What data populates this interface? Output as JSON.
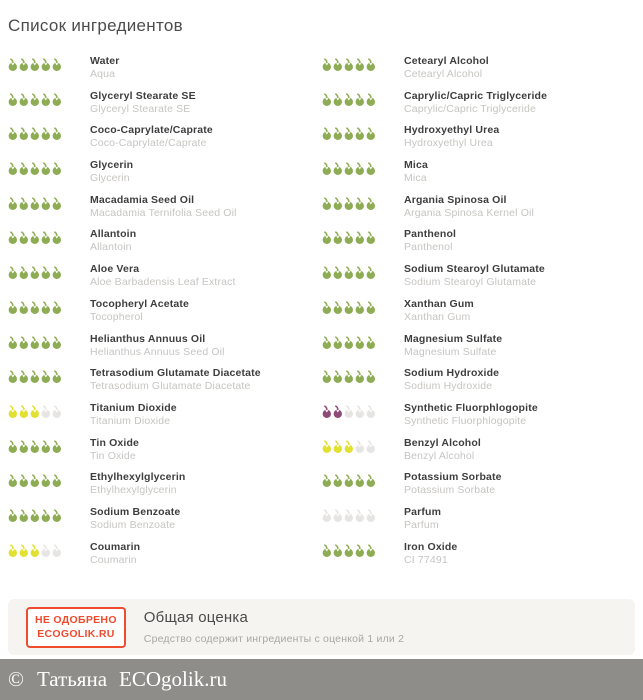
{
  "title": "Список ингредиентов",
  "rating_colors": {
    "green": "#8dac53",
    "yellow": "#e2e030",
    "purple": "#8b4c77",
    "empty": "#e6e5e3"
  },
  "rating_max": 5,
  "columns": {
    "left": [
      {
        "name": "Water",
        "sub": "Aqua",
        "color": "green",
        "filled": 5
      },
      {
        "name": "Glyceryl Stearate SE",
        "sub": "Glyceryl Stearate SE",
        "color": "green",
        "filled": 5
      },
      {
        "name": "Coco-Caprylate/Caprate",
        "sub": "Coco-Caprylate/Caprate",
        "color": "green",
        "filled": 5
      },
      {
        "name": "Glycerin",
        "sub": "Glycerin",
        "color": "green",
        "filled": 5
      },
      {
        "name": "Macadamia Seed Oil",
        "sub": "Macadamia Ternifolia Seed Oil",
        "color": "green",
        "filled": 5
      },
      {
        "name": "Allantoin",
        "sub": "Allantoin",
        "color": "green",
        "filled": 5
      },
      {
        "name": "Aloe Vera",
        "sub": "Aloe Barbadensis Leaf Extract",
        "color": "green",
        "filled": 5
      },
      {
        "name": "Tocopheryl Acetate",
        "sub": "Tocopherol",
        "color": "green",
        "filled": 5
      },
      {
        "name": "Helianthus Annuus Oil",
        "sub": "Helianthus Annuus Seed Oil",
        "color": "green",
        "filled": 5
      },
      {
        "name": "Tetrasodium Glutamate Diacetate",
        "sub": "Tetrasodium Glutamate Diacetate",
        "color": "green",
        "filled": 5
      },
      {
        "name": "Titanium Dioxide",
        "sub": "Titanium Dioxide",
        "color": "yellow",
        "filled": 3
      },
      {
        "name": "Tin Oxide",
        "sub": "Tin Oxide",
        "color": "green",
        "filled": 5
      },
      {
        "name": "Ethylhexylglycerin",
        "sub": "Ethylhexylglycerin",
        "color": "green",
        "filled": 5
      },
      {
        "name": "Sodium Benzoate",
        "sub": "Sodium Benzoate",
        "color": "green",
        "filled": 5
      },
      {
        "name": "Coumarin",
        "sub": "Coumarin",
        "color": "yellow",
        "filled": 3
      }
    ],
    "right": [
      {
        "name": "Cetearyl Alcohol",
        "sub": "Cetearyl Alcohol",
        "color": "green",
        "filled": 5
      },
      {
        "name": "Caprylic/Capric Triglyceride",
        "sub": "Caprylic/Capric Triglyceride",
        "color": "green",
        "filled": 5
      },
      {
        "name": "Hydroxyethyl Urea",
        "sub": "Hydroxyethyl Urea",
        "color": "green",
        "filled": 5
      },
      {
        "name": "Mica",
        "sub": "Mica",
        "color": "green",
        "filled": 5
      },
      {
        "name": "Argania Spinosa Oil",
        "sub": "Argania Spinosa Kernel Oil",
        "color": "green",
        "filled": 5
      },
      {
        "name": "Panthenol",
        "sub": "Panthenol",
        "color": "green",
        "filled": 5
      },
      {
        "name": "Sodium Stearoyl Glutamate",
        "sub": "Sodium Stearoyl Glutamate",
        "color": "green",
        "filled": 5
      },
      {
        "name": "Xanthan Gum",
        "sub": "Xanthan Gum",
        "color": "green",
        "filled": 5
      },
      {
        "name": "Magnesium Sulfate",
        "sub": "Magnesium Sulfate",
        "color": "green",
        "filled": 5
      },
      {
        "name": "Sodium Hydroxide",
        "sub": "Sodium Hydroxide",
        "color": "green",
        "filled": 5
      },
      {
        "name": "Synthetic Fluorphlogopite",
        "sub": "Synthetic Fluorphlogopite",
        "color": "purple",
        "filled": 2
      },
      {
        "name": "Benzyl Alcohol",
        "sub": "Benzyl Alcohol",
        "color": "yellow",
        "filled": 3
      },
      {
        "name": "Potassium Sorbate",
        "sub": "Potassium Sorbate",
        "color": "green",
        "filled": 5
      },
      {
        "name": "Parfum",
        "sub": "Parfum",
        "color": "empty",
        "filled": 0
      },
      {
        "name": "Iron Oxide",
        "sub": "CI 77491",
        "color": "green",
        "filled": 5
      }
    ]
  },
  "summary": {
    "stamp_line1": "НЕ ОДОБРЕНО",
    "stamp_line2": "ECOGOLIK.RU",
    "title": "Общая оценка",
    "text": "Средство содержит ингредиенты с оценкой 1 или 2"
  },
  "footer": {
    "copyright": "©",
    "author": "Татьяна",
    "site": "ECOgolik.ru"
  }
}
